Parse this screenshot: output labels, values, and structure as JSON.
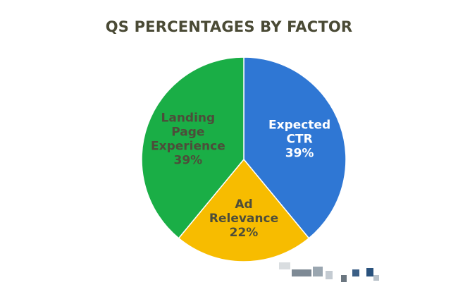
{
  "chart_data": {
    "type": "pie",
    "title": "QS PERCENTAGES BY FACTOR",
    "slices": [
      {
        "name": "Expected CTR",
        "label_lines": [
          "Expected",
          "CTR",
          "39%"
        ],
        "value": 39,
        "color": "#2f77d4",
        "label_color": "#ffffff"
      },
      {
        "name": "Ad Relevance",
        "label_lines": [
          "Ad",
          "Relevance",
          "22%"
        ],
        "value": 22,
        "color": "#f7bc00",
        "label_color": "#4d4d3a"
      },
      {
        "name": "Landing Page Experience",
        "label_lines": [
          "Landing",
          "Page",
          "Experience",
          "39%"
        ],
        "value": 39,
        "color": "#1aae46",
        "label_color": "#4d4d3a"
      }
    ],
    "start_angle_deg": 0,
    "direction": "clockwise",
    "legend": "none"
  }
}
